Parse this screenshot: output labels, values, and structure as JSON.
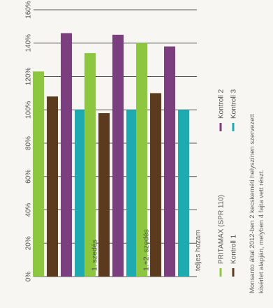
{
  "chart_data": {
    "type": "bar",
    "orientation": "horizontal",
    "categories": [
      "1. szedés",
      "1.+2. szedés",
      "teljes hozam"
    ],
    "series": [
      {
        "name": "PRITAMAX (SPR 110)",
        "color": "#8dc63f",
        "values": [
          123,
          134,
          140
        ]
      },
      {
        "name": "Kontroll 1",
        "color": "#5b3a1e",
        "values": [
          108,
          98,
          110
        ]
      },
      {
        "name": "Kontroll 2",
        "color": "#7b3f7f",
        "values": [
          146,
          145,
          138
        ]
      },
      {
        "name": "Kontroll 3",
        "color": "#1eaab1",
        "values": [
          100,
          100,
          100
        ]
      }
    ],
    "ticks": [
      "0%",
      "20%",
      "40%",
      "60%",
      "80%",
      "100%",
      "120%",
      "140%",
      "160%"
    ],
    "ylim": [
      0,
      160
    ],
    "grid": true,
    "legend_position": "bottom"
  },
  "footnote": [
    "Monsanto által 2012-ben 2 kecskeméti helyszínen szervezett",
    "kísérlet alapján, melyben 4 fajta vett részt."
  ]
}
